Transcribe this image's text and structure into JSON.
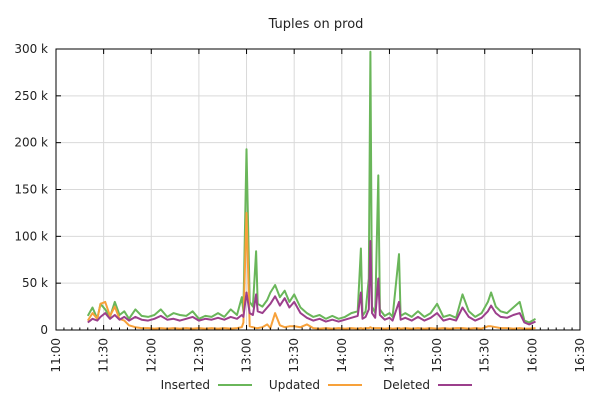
{
  "chart_data": {
    "type": "line",
    "title": "Tuples on prod",
    "xlabel": "",
    "ylabel": "",
    "x_ticks": [
      "11:00",
      "11:30",
      "12:00",
      "12:30",
      "13:00",
      "13:30",
      "14:00",
      "14:30",
      "15:00",
      "15:30",
      "16:00",
      "16:30"
    ],
    "y_ticks": [
      "0",
      "50 k",
      "100 k",
      "150 k",
      "200 k",
      "250 k",
      "300 k"
    ],
    "xlim": [
      "11:00",
      "16:30"
    ],
    "ylim": [
      0,
      300000
    ],
    "grid": true,
    "legend_position": "bottom",
    "series": [
      {
        "name": "Inserted",
        "color": "#6ab65a",
        "points": [
          [
            "11:20",
            15000
          ],
          [
            "11:23",
            24000
          ],
          [
            "11:26",
            12000
          ],
          [
            "11:28",
            28000
          ],
          [
            "11:31",
            22000
          ],
          [
            "11:34",
            14000
          ],
          [
            "11:37",
            30000
          ],
          [
            "11:40",
            16000
          ],
          [
            "11:43",
            20000
          ],
          [
            "11:46",
            12000
          ],
          [
            "11:50",
            22000
          ],
          [
            "11:54",
            15000
          ],
          [
            "11:58",
            14000
          ],
          [
            "12:02",
            16000
          ],
          [
            "12:06",
            22000
          ],
          [
            "12:10",
            14000
          ],
          [
            "12:14",
            18000
          ],
          [
            "12:18",
            16000
          ],
          [
            "12:22",
            15000
          ],
          [
            "12:26",
            20000
          ],
          [
            "12:30",
            12000
          ],
          [
            "12:34",
            15000
          ],
          [
            "12:38",
            14000
          ],
          [
            "12:42",
            18000
          ],
          [
            "12:46",
            14000
          ],
          [
            "12:50",
            22000
          ],
          [
            "12:54",
            16000
          ],
          [
            "12:57",
            35000
          ],
          [
            "12:58",
            20000
          ],
          [
            "13:00",
            193000
          ],
          [
            "13:02",
            30000
          ],
          [
            "13:04",
            25000
          ],
          [
            "13:06",
            84000
          ],
          [
            "13:07",
            28000
          ],
          [
            "13:10",
            25000
          ],
          [
            "13:13",
            32000
          ],
          [
            "13:15",
            40000
          ],
          [
            "13:18",
            48000
          ],
          [
            "13:21",
            35000
          ],
          [
            "13:24",
            42000
          ],
          [
            "13:27",
            30000
          ],
          [
            "13:30",
            38000
          ],
          [
            "13:34",
            24000
          ],
          [
            "13:38",
            18000
          ],
          [
            "13:42",
            14000
          ],
          [
            "13:46",
            16000
          ],
          [
            "13:50",
            12000
          ],
          [
            "13:54",
            15000
          ],
          [
            "13:58",
            12000
          ],
          [
            "14:02",
            14000
          ],
          [
            "14:06",
            18000
          ],
          [
            "14:10",
            20000
          ],
          [
            "14:12",
            87000
          ],
          [
            "14:13",
            15000
          ],
          [
            "14:15",
            20000
          ],
          [
            "14:17",
            55000
          ],
          [
            "14:18",
            297000
          ],
          [
            "14:19",
            25000
          ],
          [
            "14:21",
            18000
          ],
          [
            "14:23",
            165000
          ],
          [
            "14:24",
            22000
          ],
          [
            "14:27",
            15000
          ],
          [
            "14:30",
            18000
          ],
          [
            "14:32",
            14000
          ],
          [
            "14:36",
            81000
          ],
          [
            "14:37",
            15000
          ],
          [
            "14:40",
            18000
          ],
          [
            "14:44",
            14000
          ],
          [
            "14:48",
            20000
          ],
          [
            "14:52",
            14000
          ],
          [
            "14:56",
            18000
          ],
          [
            "15:00",
            28000
          ],
          [
            "15:04",
            14000
          ],
          [
            "15:08",
            16000
          ],
          [
            "15:12",
            13000
          ],
          [
            "15:16",
            38000
          ],
          [
            "15:20",
            20000
          ],
          [
            "15:24",
            14000
          ],
          [
            "15:28",
            18000
          ],
          [
            "15:32",
            30000
          ],
          [
            "15:34",
            40000
          ],
          [
            "15:37",
            25000
          ],
          [
            "15:40",
            20000
          ],
          [
            "15:44",
            18000
          ],
          [
            "15:48",
            24000
          ],
          [
            "15:52",
            30000
          ],
          [
            "15:55",
            10000
          ],
          [
            "15:58",
            8000
          ],
          [
            "16:02",
            12000
          ]
        ]
      },
      {
        "name": "Updated",
        "color": "#f7a13a",
        "points": [
          [
            "11:20",
            10000
          ],
          [
            "11:23",
            18000
          ],
          [
            "11:26",
            12000
          ],
          [
            "11:28",
            28000
          ],
          [
            "11:31",
            30000
          ],
          [
            "11:34",
            15000
          ],
          [
            "11:37",
            25000
          ],
          [
            "11:40",
            12000
          ],
          [
            "11:43",
            10000
          ],
          [
            "11:46",
            5000
          ],
          [
            "11:50",
            3000
          ],
          [
            "11:54",
            2000
          ],
          [
            "11:58",
            2000
          ],
          [
            "12:02",
            1500
          ],
          [
            "12:06",
            2000
          ],
          [
            "12:10",
            1500
          ],
          [
            "12:14",
            2000
          ],
          [
            "12:18",
            1500
          ],
          [
            "12:22",
            2000
          ],
          [
            "12:26",
            1500
          ],
          [
            "12:30",
            2000
          ],
          [
            "12:34",
            1500
          ],
          [
            "12:38",
            2000
          ],
          [
            "12:42",
            1500
          ],
          [
            "12:46",
            2000
          ],
          [
            "12:50",
            1500
          ],
          [
            "12:54",
            2000
          ],
          [
            "12:57",
            3000
          ],
          [
            "12:58",
            8000
          ],
          [
            "13:00",
            125000
          ],
          [
            "13:02",
            4000
          ],
          [
            "13:04",
            3000
          ],
          [
            "13:06",
            2000
          ],
          [
            "13:07",
            2000
          ],
          [
            "13:10",
            3000
          ],
          [
            "13:13",
            6000
          ],
          [
            "13:15",
            2000
          ],
          [
            "13:18",
            18000
          ],
          [
            "13:21",
            5000
          ],
          [
            "13:24",
            3000
          ],
          [
            "13:27",
            4000
          ],
          [
            "13:30",
            4000
          ],
          [
            "13:34",
            3000
          ],
          [
            "13:38",
            6000
          ],
          [
            "13:42",
            2000
          ],
          [
            "13:46",
            1500
          ],
          [
            "13:50",
            2000
          ],
          [
            "13:54",
            1500
          ],
          [
            "13:58",
            2000
          ],
          [
            "14:02",
            1500
          ],
          [
            "14:06",
            2000
          ],
          [
            "14:10",
            1500
          ],
          [
            "14:12",
            2000
          ],
          [
            "14:13",
            1500
          ],
          [
            "14:15",
            2000
          ],
          [
            "14:17",
            2000
          ],
          [
            "14:18",
            3000
          ],
          [
            "14:19",
            2000
          ],
          [
            "14:21",
            2000
          ],
          [
            "14:23",
            2000
          ],
          [
            "14:24",
            2000
          ],
          [
            "14:27",
            1500
          ],
          [
            "14:30",
            2000
          ],
          [
            "14:32",
            1500
          ],
          [
            "14:36",
            2000
          ],
          [
            "14:37",
            1500
          ],
          [
            "14:40",
            2000
          ],
          [
            "14:44",
            1500
          ],
          [
            "14:48",
            2000
          ],
          [
            "14:52",
            1500
          ],
          [
            "14:56",
            2000
          ],
          [
            "15:00",
            1500
          ],
          [
            "15:04",
            2000
          ],
          [
            "15:08",
            1500
          ],
          [
            "15:12",
            2000
          ],
          [
            "15:16",
            2000
          ],
          [
            "15:20",
            1500
          ],
          [
            "15:24",
            2000
          ],
          [
            "15:28",
            1500
          ],
          [
            "15:32",
            4000
          ],
          [
            "15:34",
            4000
          ],
          [
            "15:37",
            3000
          ],
          [
            "15:40",
            2000
          ],
          [
            "15:44",
            2000
          ],
          [
            "15:48",
            1500
          ],
          [
            "15:52",
            2000
          ],
          [
            "15:55",
            1500
          ],
          [
            "15:58",
            1500
          ],
          [
            "16:02",
            2000
          ]
        ]
      },
      {
        "name": "Deleted",
        "color": "#9c3f8c",
        "points": [
          [
            "11:20",
            8000
          ],
          [
            "11:23",
            12000
          ],
          [
            "11:26",
            10000
          ],
          [
            "11:28",
            14000
          ],
          [
            "11:31",
            18000
          ],
          [
            "11:34",
            12000
          ],
          [
            "11:37",
            16000
          ],
          [
            "11:40",
            11000
          ],
          [
            "11:43",
            14000
          ],
          [
            "11:46",
            10000
          ],
          [
            "11:50",
            14000
          ],
          [
            "11:54",
            11000
          ],
          [
            "11:58",
            10000
          ],
          [
            "12:02",
            12000
          ],
          [
            "12:06",
            15000
          ],
          [
            "12:10",
            11000
          ],
          [
            "12:14",
            12000
          ],
          [
            "12:18",
            10000
          ],
          [
            "12:22",
            12000
          ],
          [
            "12:26",
            14000
          ],
          [
            "12:30",
            10000
          ],
          [
            "12:34",
            12000
          ],
          [
            "12:38",
            11000
          ],
          [
            "12:42",
            13000
          ],
          [
            "12:46",
            11000
          ],
          [
            "12:50",
            14000
          ],
          [
            "12:54",
            12000
          ],
          [
            "12:57",
            16000
          ],
          [
            "12:58",
            14000
          ],
          [
            "13:00",
            40000
          ],
          [
            "13:02",
            18000
          ],
          [
            "13:04",
            16000
          ],
          [
            "13:06",
            38000
          ],
          [
            "13:07",
            20000
          ],
          [
            "13:10",
            18000
          ],
          [
            "13:13",
            24000
          ],
          [
            "13:15",
            28000
          ],
          [
            "13:18",
            36000
          ],
          [
            "13:21",
            26000
          ],
          [
            "13:24",
            34000
          ],
          [
            "13:27",
            24000
          ],
          [
            "13:30",
            30000
          ],
          [
            "13:34",
            18000
          ],
          [
            "13:38",
            13000
          ],
          [
            "13:42",
            10000
          ],
          [
            "13:46",
            12000
          ],
          [
            "13:50",
            9000
          ],
          [
            "13:54",
            11000
          ],
          [
            "13:58",
            9000
          ],
          [
            "14:02",
            11000
          ],
          [
            "14:06",
            13000
          ],
          [
            "14:10",
            15000
          ],
          [
            "14:12",
            40000
          ],
          [
            "14:13",
            12000
          ],
          [
            "14:15",
            14000
          ],
          [
            "14:17",
            22000
          ],
          [
            "14:18",
            95000
          ],
          [
            "14:19",
            18000
          ],
          [
            "14:21",
            13000
          ],
          [
            "14:23",
            55000
          ],
          [
            "14:24",
            16000
          ],
          [
            "14:27",
            11000
          ],
          [
            "14:30",
            13000
          ],
          [
            "14:32",
            10000
          ],
          [
            "14:36",
            30000
          ],
          [
            "14:37",
            11000
          ],
          [
            "14:40",
            13000
          ],
          [
            "14:44",
            10000
          ],
          [
            "14:48",
            14000
          ],
          [
            "14:52",
            10000
          ],
          [
            "14:56",
            13000
          ],
          [
            "15:00",
            18000
          ],
          [
            "15:04",
            10000
          ],
          [
            "15:08",
            12000
          ],
          [
            "15:12",
            10000
          ],
          [
            "15:16",
            24000
          ],
          [
            "15:20",
            14000
          ],
          [
            "15:24",
            10000
          ],
          [
            "15:28",
            13000
          ],
          [
            "15:32",
            20000
          ],
          [
            "15:34",
            26000
          ],
          [
            "15:37",
            18000
          ],
          [
            "15:40",
            14000
          ],
          [
            "15:44",
            13000
          ],
          [
            "15:48",
            16000
          ],
          [
            "15:52",
            18000
          ],
          [
            "15:55",
            8000
          ],
          [
            "15:58",
            6000
          ],
          [
            "16:02",
            9000
          ]
        ]
      }
    ]
  }
}
